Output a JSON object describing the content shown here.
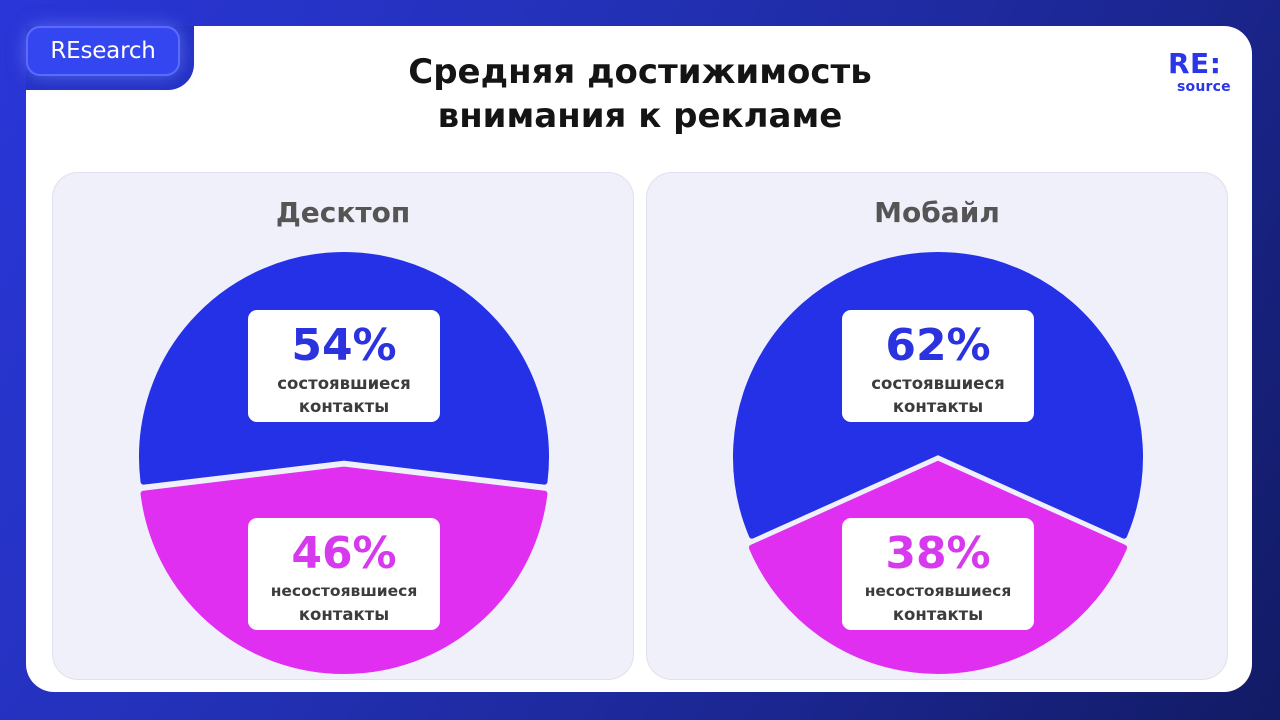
{
  "header": {
    "badge": "REsearch",
    "title_line1": "Средняя достижимость",
    "title_line2": "внимания к рекламе",
    "logo_main": "RE:",
    "logo_sub": "source"
  },
  "colors": {
    "brand_blue": "#2431e6",
    "accent_magenta": "#e02ff0",
    "background": "#2331c4"
  },
  "chart_data": [
    {
      "type": "pie",
      "title": "Десктоп",
      "slices": [
        {
          "label": "состоявшиеся контакты",
          "label_line1": "состоявшиеся",
          "label_line2": "контакты",
          "value": 54,
          "value_text": "54%",
          "color": "#2431e6"
        },
        {
          "label": "несостоявшиеся контакты",
          "label_line1": "несостоявшиеся",
          "label_line2": "контакты",
          "value": 46,
          "value_text": "46%",
          "color": "#e02ff0"
        }
      ]
    },
    {
      "type": "pie",
      "title": "Мобайл",
      "slices": [
        {
          "label": "состоявшиеся контакты",
          "label_line1": "состоявшиеся",
          "label_line2": "контакты",
          "value": 62,
          "value_text": "62%",
          "color": "#2431e6"
        },
        {
          "label": "несостоявшиеся контакты",
          "label_line1": "несостоявшиеся",
          "label_line2": "контакты",
          "value": 38,
          "value_text": "38%",
          "color": "#e02ff0"
        }
      ]
    }
  ]
}
